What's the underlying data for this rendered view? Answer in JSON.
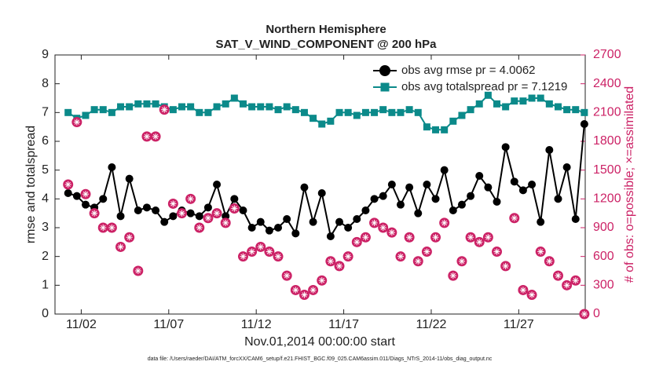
{
  "chart_data": {
    "type": "line",
    "title": [
      "Northern Hemisphere",
      "SAT_V_WIND_COMPONENT @ 200 hPa"
    ],
    "xlabel": "Nov.01,2014 00:00:00 start",
    "ylabel": "rmse and totalspread",
    "y2label": "# of obs: o=possible; ×=assimilated",
    "footnote": "data file: /Users/raeder/DAI/ATM_forcXX/CAM6_setup/f.e21.FHIST_BGC.f09_025.CAM6assim.011/Diags_NTrS_2014-11/obs_diag_output.nc",
    "xlim": [
      -0.5,
      29.8
    ],
    "xticks": [
      {
        "value": 1,
        "label": "11/02"
      },
      {
        "value": 6,
        "label": "11/07"
      },
      {
        "value": 11,
        "label": "11/12"
      },
      {
        "value": 16,
        "label": "11/17"
      },
      {
        "value": 21,
        "label": "11/22"
      },
      {
        "value": 26,
        "label": "11/27"
      }
    ],
    "ylim": [
      0,
      9
    ],
    "yticks": [
      0,
      1,
      2,
      3,
      4,
      5,
      6,
      7,
      8,
      9
    ],
    "y2lim": [
      0,
      2700
    ],
    "y2ticks": [
      0,
      300,
      600,
      900,
      1200,
      1500,
      1800,
      2100,
      2400,
      2700
    ],
    "legend": "upper right",
    "x": [
      0.25,
      0.75,
      1.25,
      1.75,
      2.25,
      2.75,
      3.25,
      3.75,
      4.25,
      4.75,
      5.25,
      5.75,
      6.25,
      6.75,
      7.25,
      7.75,
      8.25,
      8.75,
      9.25,
      9.75,
      10.25,
      10.75,
      11.25,
      11.75,
      12.25,
      12.75,
      13.25,
      13.75,
      14.25,
      14.75,
      15.25,
      15.75,
      16.25,
      16.75,
      17.25,
      17.75,
      18.25,
      18.75,
      19.25,
      19.75,
      20.25,
      20.75,
      21.25,
      21.75,
      22.25,
      22.75,
      23.25,
      23.75,
      24.25,
      24.75,
      25.25,
      25.75,
      26.25,
      26.75,
      27.25,
      27.75,
      28.25,
      28.75,
      29.25,
      29.75
    ],
    "series": [
      {
        "name": "obs avg rmse pr = 4.0062",
        "color": "#000000",
        "marker": "circle",
        "values": [
          4.2,
          4.1,
          3.8,
          3.7,
          4.0,
          5.1,
          3.4,
          4.7,
          3.6,
          3.7,
          3.6,
          3.2,
          3.4,
          3.6,
          3.5,
          3.4,
          3.7,
          4.5,
          3.4,
          4.0,
          3.6,
          3.0,
          3.2,
          2.9,
          3.0,
          3.3,
          2.8,
          4.4,
          3.2,
          4.2,
          2.7,
          3.2,
          3.0,
          3.3,
          3.6,
          4.0,
          4.1,
          4.5,
          3.8,
          4.4,
          3.5,
          4.5,
          4.0,
          5.0,
          3.6,
          3.8,
          4.1,
          4.8,
          4.4,
          3.9,
          5.8,
          4.6,
          4.3,
          4.5,
          3.2,
          5.7,
          4.0,
          5.1,
          3.3,
          6.6
        ]
      },
      {
        "name": "obs avg totalspread pr = 7.1219",
        "color": "#0b8a8a",
        "marker": "square",
        "values": [
          7.0,
          6.8,
          6.9,
          7.1,
          7.1,
          7.0,
          7.2,
          7.2,
          7.3,
          7.3,
          7.3,
          7.2,
          7.1,
          7.2,
          7.2,
          7.0,
          7.0,
          7.2,
          7.3,
          7.5,
          7.3,
          7.2,
          7.2,
          7.2,
          7.1,
          7.2,
          7.1,
          7.0,
          6.8,
          6.6,
          6.7,
          7.0,
          7.0,
          6.9,
          7.0,
          7.0,
          7.1,
          7.0,
          7.0,
          7.1,
          7.0,
          6.5,
          6.4,
          6.4,
          6.7,
          6.9,
          7.1,
          7.3,
          7.6,
          7.3,
          7.2,
          7.4,
          7.4,
          7.5,
          7.5,
          7.3,
          7.2,
          7.1,
          7.1,
          7.0
        ]
      },
      {
        "color": "#cc2266",
        "marker": "circle-star",
        "axis": "y2",
        "line": false,
        "values": [
          1350,
          2000,
          1250,
          1050,
          900,
          900,
          700,
          800,
          450,
          1850,
          1850,
          2130,
          1150,
          1050,
          1200,
          900,
          1000,
          1050,
          950,
          1100,
          600,
          650,
          700,
          650,
          600,
          400,
          250,
          200,
          250,
          350,
          550,
          500,
          600,
          750,
          800,
          950,
          900,
          850,
          600,
          800,
          550,
          650,
          800,
          950,
          400,
          550,
          800,
          750,
          800,
          650,
          500,
          1000,
          250,
          200,
          650,
          550,
          400,
          300,
          350,
          0
        ]
      }
    ]
  }
}
